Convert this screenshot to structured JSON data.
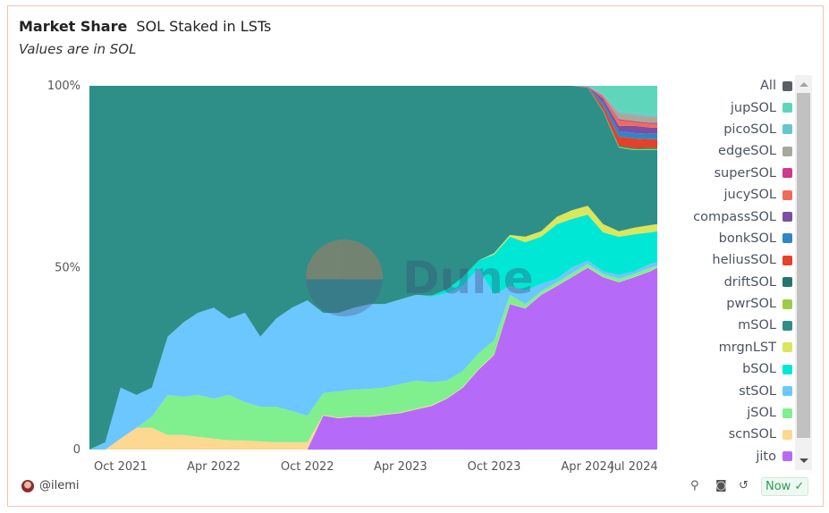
{
  "header": {
    "title": "Market Share",
    "subtitle": "SOL Staked in LSTs",
    "note": "Values are in SOL"
  },
  "watermark": "Dune",
  "footer": {
    "user": "@ilemi",
    "status": "Now"
  },
  "chart_data": {
    "type": "area",
    "stacked": "percent",
    "ylim": [
      0,
      100
    ],
    "y_ticks": [
      "0",
      "50%",
      "100%"
    ],
    "x_ticks": [
      "Oct 2021",
      "Apr 2022",
      "Oct 2022",
      "Apr 2023",
      "Oct 2023",
      "Apr 2024",
      "Jul 2024"
    ],
    "x_tick_dates": [
      "2021-10-01",
      "2022-04-01",
      "2022-10-01",
      "2023-04-01",
      "2023-10-01",
      "2024-04-01",
      "2024-07-01"
    ],
    "xlim": [
      "2021-08-01",
      "2024-08-15"
    ],
    "legend_position": "right",
    "legend_all": {
      "name": "All",
      "color": "#5b5f66"
    },
    "x": [
      "2021-08-01",
      "2021-09-01",
      "2021-10-01",
      "2021-11-01",
      "2021-12-01",
      "2022-01-01",
      "2022-02-01",
      "2022-03-01",
      "2022-04-01",
      "2022-05-01",
      "2022-06-01",
      "2022-07-01",
      "2022-08-01",
      "2022-09-01",
      "2022-10-01",
      "2022-11-01",
      "2022-12-01",
      "2023-01-01",
      "2023-02-01",
      "2023-03-01",
      "2023-04-01",
      "2023-05-01",
      "2023-06-01",
      "2023-07-01",
      "2023-08-01",
      "2023-09-01",
      "2023-10-01",
      "2023-11-01",
      "2023-12-01",
      "2024-01-01",
      "2024-02-01",
      "2024-03-01",
      "2024-04-01",
      "2024-05-01",
      "2024-06-01",
      "2024-07-01",
      "2024-08-01",
      "2024-08-15"
    ],
    "series": [
      {
        "name": "jito",
        "color": "#b56bf7",
        "values": [
          0,
          0,
          0,
          0,
          0,
          0,
          0,
          0,
          0,
          0,
          0,
          0,
          0,
          0,
          0,
          9.3,
          8.6,
          9,
          9,
          9.5,
          10,
          11,
          12,
          14,
          17,
          22,
          26,
          40,
          38.8,
          42.5,
          45,
          47.4,
          50,
          47.4,
          46,
          47.4,
          49,
          50
        ]
      },
      {
        "name": "scnSOL",
        "color": "#fdd891",
        "values": [
          0,
          0,
          3,
          6,
          6,
          4,
          4,
          3.5,
          3,
          2.5,
          2.5,
          2.2,
          2,
          2,
          2,
          0.2,
          0.2,
          0.2,
          0.2,
          0.2,
          0.2,
          0.2,
          0.2,
          0.2,
          0.2,
          0.2,
          0.2,
          0.1,
          0.1,
          0.1,
          0.1,
          0.1,
          0.1,
          0.1,
          0.1,
          0.1,
          0.1,
          0.1
        ]
      },
      {
        "name": "jSOL",
        "color": "#80ef8d",
        "values": [
          0,
          0,
          0,
          0,
          3,
          11,
          10.5,
          11.5,
          11,
          12.5,
          10.5,
          9.6,
          9.8,
          8.6,
          7.3,
          6,
          7.2,
          7.3,
          7.5,
          7.3,
          7.8,
          7.8,
          6.3,
          4.8,
          4.4,
          4.3,
          3.8,
          2.4,
          1.1,
          0.9,
          0.9,
          1,
          0.9,
          0.8,
          0.9,
          0.8,
          0.9,
          0.4
        ]
      },
      {
        "name": "stSOL",
        "color": "#6cc6ff",
        "values": [
          0,
          2,
          14,
          9,
          8,
          16,
          20.5,
          22.6,
          25,
          21,
          24.6,
          19.2,
          24.2,
          28.4,
          31.7,
          22.1,
          21.6,
          22.5,
          23.3,
          23,
          23.3,
          23.5,
          23.5,
          24,
          23.4,
          23.5,
          12.5,
          2.5,
          3.7,
          2,
          1,
          1.5,
          1,
          0.7,
          1,
          0.7,
          1,
          1
        ]
      },
      {
        "name": "bSOL",
        "color": "#00e8d5",
        "values": [
          0,
          0,
          0,
          0,
          0,
          0,
          0,
          0,
          0,
          0,
          0,
          0,
          0,
          0,
          0,
          0,
          0,
          0,
          0,
          0,
          0,
          0,
          0.3,
          1,
          2.4,
          2,
          11.1,
          13.5,
          13.3,
          13,
          15,
          13.4,
          12.6,
          10.7,
          10.5,
          10.2,
          8.7,
          8.5
        ]
      },
      {
        "name": "mrgnLST",
        "color": "#dbe65a",
        "values": [
          0,
          0,
          0,
          0,
          0,
          0,
          0,
          0,
          0,
          0,
          0,
          0,
          0,
          0,
          0,
          0,
          0,
          0,
          0,
          0,
          0,
          0,
          0,
          0,
          0,
          0,
          0.4,
          0.5,
          1.5,
          1.5,
          2,
          2.4,
          2.4,
          2.3,
          1.5,
          1.8,
          2,
          2
        ]
      },
      {
        "name": "mSOL",
        "color": "#2e8f88",
        "values": [
          100,
          98,
          83,
          85,
          83,
          69,
          65,
          62.4,
          61,
          64,
          62.4,
          69,
          64,
          61,
          59,
          62.4,
          62.4,
          61,
          60,
          60,
          58.7,
          57.5,
          57.7,
          56,
          52.6,
          48,
          46,
          41,
          41.5,
          40,
          36,
          34.2,
          32.5,
          31,
          23,
          21.3,
          20.6,
          20.3
        ]
      },
      {
        "name": "pwrSOL",
        "color": "#9ccc45",
        "values": [
          0,
          0,
          0,
          0,
          0,
          0,
          0,
          0,
          0,
          0,
          0,
          0,
          0,
          0,
          0,
          0,
          0,
          0,
          0,
          0,
          0,
          0,
          0,
          0,
          0,
          0,
          0,
          0,
          0,
          0,
          0,
          0,
          0.05,
          0.2,
          0.3,
          0.3,
          0.3,
          0.3
        ]
      },
      {
        "name": "driftSOL",
        "color": "#22776a",
        "values": [
          0,
          0,
          0,
          0,
          0,
          0,
          0,
          0,
          0,
          0,
          0,
          0,
          0,
          0,
          0,
          0,
          0,
          0,
          0,
          0,
          0,
          0,
          0,
          0,
          0,
          0,
          0,
          0,
          0,
          0,
          0,
          0,
          0.05,
          0.2,
          0.3,
          0.3,
          0.4,
          0.4
        ]
      },
      {
        "name": "heliusSOL",
        "color": "#e5402a",
        "values": [
          0,
          0,
          0,
          0,
          0,
          0,
          0,
          0,
          0,
          0,
          0,
          0,
          0,
          0,
          0,
          0,
          0,
          0,
          0,
          0,
          0,
          0,
          0,
          0,
          0,
          0,
          0,
          0,
          0,
          0,
          0,
          0,
          0.1,
          1.1,
          2.4,
          2.6,
          2.3,
          2.3
        ]
      },
      {
        "name": "bonkSOL",
        "color": "#2f86c6",
        "values": [
          0,
          0,
          0,
          0,
          0,
          0,
          0,
          0,
          0,
          0,
          0,
          0,
          0,
          0,
          0,
          0,
          0,
          0,
          0,
          0,
          0,
          0,
          0,
          0,
          0,
          0,
          0,
          0,
          0,
          0,
          0,
          0,
          0.05,
          1,
          1.5,
          1.5,
          1.5,
          1.5
        ]
      },
      {
        "name": "compassSOL",
        "color": "#7b4fa3",
        "values": [
          0,
          0,
          0,
          0,
          0,
          0,
          0,
          0,
          0,
          0,
          0,
          0,
          0,
          0,
          0,
          0,
          0,
          0,
          0,
          0,
          0,
          0,
          0,
          0,
          0,
          0,
          0,
          0,
          0,
          0,
          0,
          0,
          0.05,
          1,
          1.5,
          2,
          1.7,
          1.7
        ]
      },
      {
        "name": "jucySOL",
        "color": "#ef6b5b",
        "values": [
          0,
          0,
          0,
          0,
          0,
          0,
          0,
          0,
          0,
          0,
          0,
          0,
          0,
          0,
          0,
          0,
          0,
          0,
          0,
          0,
          0,
          0,
          0,
          0,
          0,
          0,
          0,
          0,
          0,
          0,
          0,
          0,
          0.05,
          0.5,
          1.5,
          1,
          1,
          1
        ]
      },
      {
        "name": "superSOL",
        "color": "#cf3a8c",
        "values": [
          0,
          0,
          0,
          0,
          0,
          0,
          0,
          0,
          0,
          0,
          0,
          0,
          0,
          0,
          0,
          0,
          0,
          0,
          0,
          0,
          0,
          0,
          0,
          0,
          0,
          0,
          0,
          0,
          0,
          0,
          0,
          0,
          0.05,
          0.2,
          0.3,
          0.3,
          0.3,
          0.3
        ]
      },
      {
        "name": "edgeSOL",
        "color": "#a8a999",
        "values": [
          0,
          0,
          0,
          0,
          0,
          0,
          0,
          0,
          0,
          0,
          0,
          0,
          0,
          0,
          0,
          0,
          0,
          0,
          0,
          0,
          0,
          0,
          0,
          0,
          0,
          0,
          0,
          0,
          0,
          0,
          0,
          0,
          0.02,
          0.3,
          1.7,
          1.7,
          1.7,
          1.7
        ]
      },
      {
        "name": "picoSOL",
        "color": "#67c6cc",
        "values": [
          0,
          0,
          0,
          0,
          0,
          0,
          0,
          0,
          0,
          0,
          0,
          0,
          0,
          0,
          0,
          0,
          0,
          0,
          0,
          0,
          0,
          0,
          0,
          0,
          0,
          0,
          0,
          0,
          0,
          0,
          0,
          0,
          0.03,
          0.3,
          0.5,
          0.5,
          0.5,
          0.5
        ]
      },
      {
        "name": "jupSOL",
        "color": "#5fd6bb",
        "values": [
          0,
          0,
          0,
          0,
          0,
          0,
          0,
          0,
          0,
          0,
          0,
          0,
          0,
          0,
          0,
          0,
          0,
          0,
          0,
          0,
          0,
          0,
          0,
          0,
          0,
          0,
          0,
          0,
          0,
          0,
          0,
          0,
          0.05,
          2.2,
          7,
          7.5,
          8,
          8
        ]
      }
    ]
  }
}
